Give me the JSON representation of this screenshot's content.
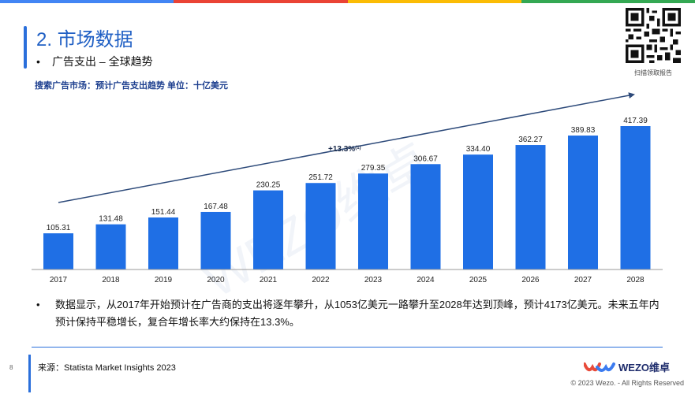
{
  "title": "2. 市场数据",
  "bullet_heading": "广告支出 – 全球趋势",
  "bullet_mark": "•",
  "subtitle": "搜索广告市场：预计广告支出趋势 单位：十亿美元",
  "qr_label": "扫描领取报告",
  "cagr_label": "+13.3%",
  "cagr_superscript": "(1)",
  "note": "数据显示，从2017年开始预计在广告商的支出将逐年攀升，从1053亿美元一路攀升至2028年达到顶峰，预计4173亿美元。未来五年内预计保持平稳增长，复合年增长率大约保持在13.3%。",
  "source": "来源：Statista Market Insights 2023",
  "page_number": "8",
  "logo_text": "WEZO维卓",
  "watermark": "WEZO维卓",
  "copyright": "© 2023 Wezo. - All Rights Reserved",
  "colors": {
    "bar": "#1f6fe5",
    "accent": "#2a6fdb",
    "title": "#1f5fc4",
    "trend_line": "#2d4a7a",
    "top_strip": [
      "#4285f4",
      "#ea4335",
      "#fbbc05",
      "#34a853"
    ]
  },
  "chart_data": {
    "type": "bar",
    "title": "",
    "xlabel": "",
    "ylabel": "",
    "categories": [
      "2017",
      "2018",
      "2019",
      "2020",
      "2021",
      "2022",
      "2023",
      "2024",
      "2025",
      "2026",
      "2027",
      "2028"
    ],
    "values": [
      105.31,
      131.48,
      151.44,
      167.48,
      230.25,
      251.72,
      279.35,
      306.67,
      334.4,
      362.27,
      389.83,
      417.39
    ],
    "value_labels": [
      "105.31",
      "131.48",
      "151.44",
      "167.48",
      "230.25",
      "251.72",
      "279.35",
      "306.67",
      "334.40",
      "362.27",
      "389.83",
      "417.39"
    ],
    "ylim": [
      0,
      417.39
    ],
    "grid": false,
    "legend": "none"
  }
}
